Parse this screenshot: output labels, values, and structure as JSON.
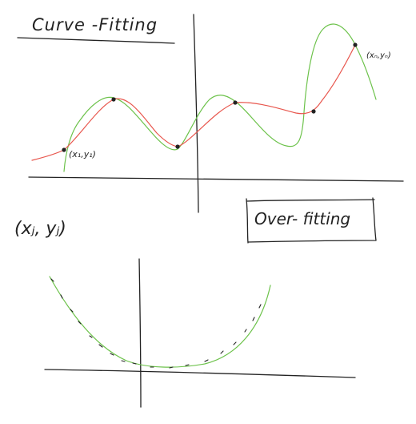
{
  "title_curve_fitting": "Curve -Fitting",
  "title_over_fitting": "Over- fitting",
  "label_first_point": "(x₁,y₁)",
  "label_last_point": "(xₙ,yₙ)",
  "label_general_point": "(xⱼ, yⱼ)",
  "colors": {
    "ink": "#222222",
    "fit_curve": "#e8564d",
    "overfit_curve": "#6cc24a",
    "background": "#ffffff"
  }
}
